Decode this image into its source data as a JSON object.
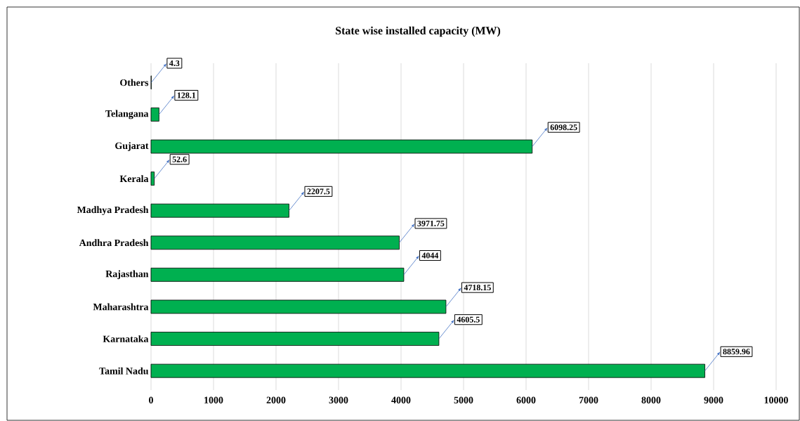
{
  "chart_data": {
    "type": "bar",
    "orientation": "horizontal",
    "title": "State wise installed capacity (MW)",
    "categories": [
      "Others",
      "Telangana",
      "Gujarat",
      "Kerala",
      "Madhya Pradesh",
      "Andhra Pradesh",
      "Rajasthan",
      "Maharashtra",
      "Karnataka",
      "Tamil Nadu"
    ],
    "values": [
      4.3,
      128.1,
      6098.25,
      52.6,
      2207.5,
      3971.75,
      4044,
      4718.15,
      4605.5,
      8859.96
    ],
    "color": "#00b050",
    "xlim": [
      0,
      10000
    ],
    "xticks": [
      0,
      1000,
      2000,
      3000,
      4000,
      5000,
      6000,
      7000,
      8000,
      9000,
      10000
    ],
    "grid": "x",
    "data_labels": true
  }
}
